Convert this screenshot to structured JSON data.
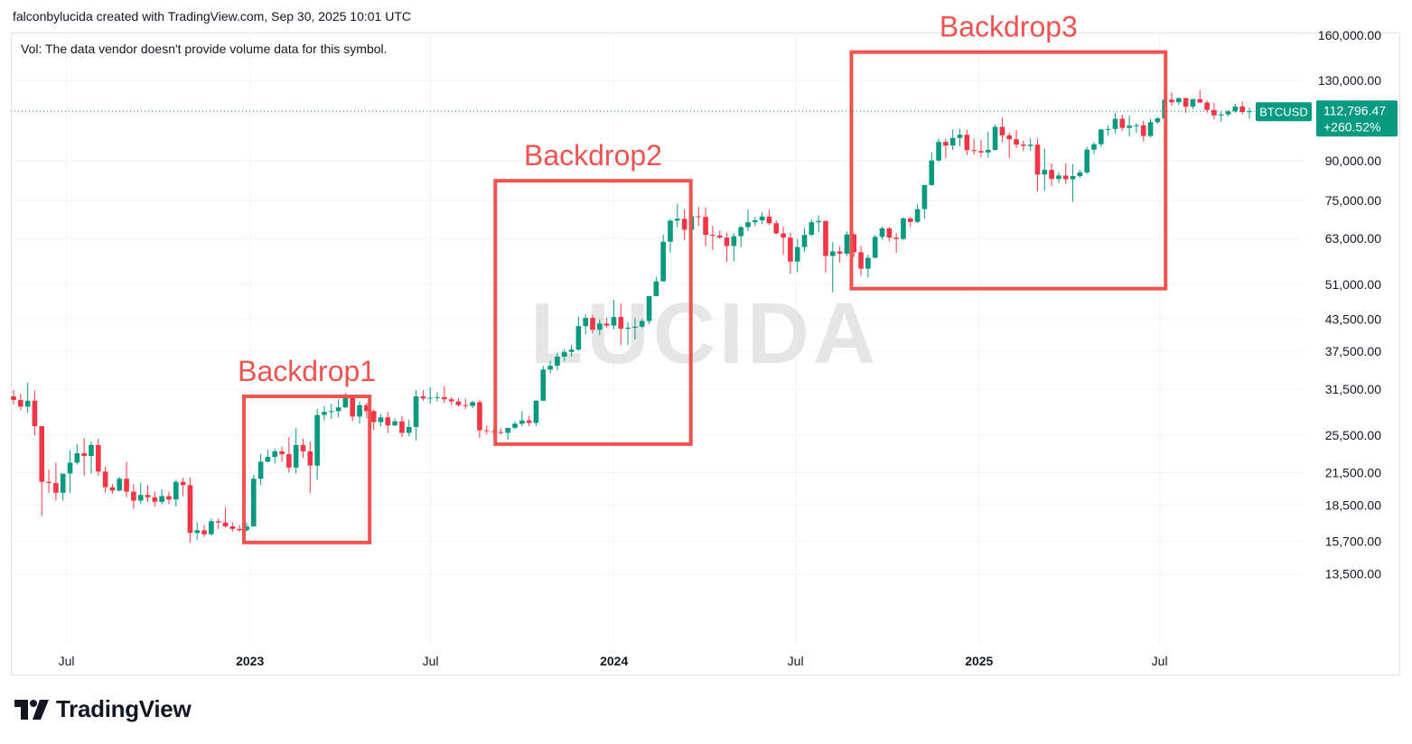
{
  "header": {
    "caption": "falconbylucida created with TradingView.com, Sep 30, 2025 10:01 UTC"
  },
  "chart": {
    "vol_note": "Vol: The data vendor doesn't provide volume data for this symbol.",
    "watermark": "LUCIDA",
    "symbol": "BTCUSD",
    "last_price": "112,796.47",
    "last_change": "+260.52%",
    "colors": {
      "up": "#089981",
      "down": "#f23645",
      "box": "#ef5350",
      "grid": "#f0f3fa"
    }
  },
  "brand": {
    "name": "TradingView"
  },
  "chart_data": {
    "type": "candlestick",
    "title": "",
    "scale": "log",
    "grid": true,
    "price_axis": {
      "ticks": [
        "13,500.00",
        "15,700.00",
        "18,500.00",
        "21,500.00",
        "25,500.00",
        "31,500.00",
        "37,500.00",
        "43,500.00",
        "51,000.00",
        "63,000.00",
        "75,000.00",
        "90,000.00",
        "130,000.00",
        "160,000.00"
      ],
      "tick_values": [
        13500,
        15700,
        18500,
        21500,
        25500,
        31500,
        37500,
        43500,
        51000,
        63000,
        75000,
        90000,
        130000,
        160000
      ]
    },
    "time_axis": {
      "ticks": [
        "Jul",
        "2023",
        "Jul",
        "2024",
        "Jul",
        "2025",
        "Jul"
      ],
      "tick_dates": [
        "2022-07-01",
        "2023-01-01",
        "2023-07-01",
        "2024-01-01",
        "2024-07-01",
        "2025-01-01",
        "2025-07-01"
      ],
      "bold": [
        false,
        true,
        false,
        true,
        false,
        true,
        false
      ],
      "range": [
        "2022-05-09",
        "2025-09-29"
      ]
    },
    "candle_interval": "1 week",
    "candles": [
      [
        30500,
        31400,
        29400,
        30000
      ],
      [
        30000,
        30900,
        28600,
        29100
      ],
      [
        29100,
        32500,
        28300,
        29900
      ],
      [
        29900,
        31300,
        25500,
        26600
      ],
      [
        26600,
        26600,
        17600,
        20600
      ],
      [
        20600,
        21800,
        19600,
        20500
      ],
      [
        20500,
        22500,
        18900,
        19600
      ],
      [
        19600,
        21000,
        18900,
        21400
      ],
      [
        21400,
        23800,
        19600,
        22500
      ],
      [
        22500,
        24500,
        22300,
        23500
      ],
      [
        23500,
        25200,
        21200,
        23200
      ],
      [
        23200,
        24800,
        21400,
        24400
      ],
      [
        24400,
        25100,
        21200,
        21600
      ],
      [
        21600,
        22100,
        19600,
        20100
      ],
      [
        20100,
        20400,
        19500,
        19800
      ],
      [
        19800,
        21100,
        19700,
        20900
      ],
      [
        20900,
        22600,
        19200,
        19700
      ],
      [
        19700,
        20400,
        18200,
        18900
      ],
      [
        18900,
        20500,
        18600,
        19400
      ],
      [
        19400,
        20300,
        18800,
        19200
      ],
      [
        19200,
        19700,
        18400,
        18800
      ],
      [
        18800,
        19900,
        18600,
        19300
      ],
      [
        19300,
        19700,
        18600,
        19000
      ],
      [
        19000,
        20800,
        18400,
        20600
      ],
      [
        20600,
        21000,
        19300,
        20300
      ],
      [
        20300,
        21000,
        15600,
        16300
      ],
      [
        16300,
        17100,
        15800,
        16500
      ],
      [
        16500,
        16900,
        16000,
        16200
      ],
      [
        16200,
        17400,
        16100,
        17200
      ],
      [
        17200,
        17400,
        16600,
        17100
      ],
      [
        17100,
        18300,
        16700,
        16800
      ],
      [
        16800,
        17100,
        16400,
        16600
      ],
      [
        16600,
        16900,
        16400,
        16500
      ],
      [
        16500,
        17100,
        16400,
        16800
      ],
      [
        16800,
        21300,
        16800,
        20900
      ],
      [
        20900,
        23400,
        20300,
        22600
      ],
      [
        22600,
        23900,
        22500,
        23100
      ],
      [
        23100,
        24000,
        22400,
        23700
      ],
      [
        23700,
        24200,
        22600,
        23400
      ],
      [
        23400,
        25300,
        21500,
        22000
      ],
      [
        22000,
        26400,
        21400,
        24400
      ],
      [
        24400,
        25100,
        23000,
        23700
      ],
      [
        23700,
        24800,
        19600,
        22200
      ],
      [
        22200,
        28800,
        20800,
        28000
      ],
      [
        28000,
        29200,
        27300,
        28400
      ],
      [
        28400,
        29500,
        27500,
        28500
      ],
      [
        28500,
        30100,
        27700,
        29000
      ],
      [
        29000,
        31000,
        28900,
        30400
      ],
      [
        30400,
        30500,
        27200,
        27800
      ],
      [
        27800,
        29800,
        26900,
        29300
      ],
      [
        29300,
        29600,
        27600,
        28500
      ],
      [
        28500,
        28700,
        26100,
        27100
      ],
      [
        27100,
        28100,
        26600,
        27700
      ],
      [
        27700,
        28400,
        25800,
        26700
      ],
      [
        26700,
        27600,
        26600,
        27200
      ],
      [
        27200,
        27900,
        25300,
        25800
      ],
      [
        25800,
        27400,
        25400,
        26500
      ],
      [
        26500,
        31400,
        24900,
        30500
      ],
      [
        30500,
        31400,
        29900,
        30200
      ],
      [
        30200,
        31800,
        29500,
        30300
      ],
      [
        30300,
        31100,
        29800,
        30400
      ],
      [
        30400,
        32000,
        29600,
        30100
      ],
      [
        30100,
        30400,
        29300,
        29800
      ],
      [
        29800,
        30200,
        29100,
        29300
      ],
      [
        29300,
        30200,
        28800,
        29200
      ],
      [
        29200,
        29900,
        28900,
        29700
      ],
      [
        29700,
        30000,
        25200,
        26100
      ],
      [
        26100,
        26700,
        25600,
        26000
      ],
      [
        26000,
        26400,
        25300,
        25900
      ],
      [
        25900,
        26300,
        25600,
        25800
      ],
      [
        25800,
        26200,
        25000,
        26400
      ],
      [
        26400,
        27200,
        26200,
        26900
      ],
      [
        26900,
        28500,
        26600,
        27300
      ],
      [
        27300,
        27900,
        26600,
        27000
      ],
      [
        27000,
        30000,
        26600,
        29900
      ],
      [
        29900,
        35100,
        29800,
        34500
      ],
      [
        34500,
        35900,
        33900,
        35100
      ],
      [
        35100,
        37300,
        34400,
        36600
      ],
      [
        36600,
        37900,
        35800,
        37400
      ],
      [
        37400,
        38600,
        36600,
        37800
      ],
      [
        37800,
        44000,
        37600,
        42100
      ],
      [
        42100,
        44500,
        40600,
        43700
      ],
      [
        43700,
        44300,
        40800,
        41400
      ],
      [
        41400,
        43400,
        40400,
        42600
      ],
      [
        42600,
        43800,
        41800,
        42200
      ],
      [
        42200,
        47500,
        41500,
        43900
      ],
      [
        43900,
        46700,
        38600,
        41600
      ],
      [
        41600,
        42900,
        38600,
        41800
      ],
      [
        41800,
        43700,
        39600,
        42000
      ],
      [
        42000,
        43500,
        41700,
        43100
      ],
      [
        43100,
        48300,
        42500,
        48300
      ],
      [
        48300,
        52800,
        48200,
        51700
      ],
      [
        51700,
        64000,
        51600,
        62000
      ],
      [
        62000,
        68900,
        59000,
        68300
      ],
      [
        68300,
        73800,
        66200,
        68900
      ],
      [
        68900,
        72000,
        62500,
        65500
      ],
      [
        65500,
        71000,
        64300,
        69700
      ],
      [
        69700,
        72800,
        66700,
        69500
      ],
      [
        69500,
        72600,
        60700,
        64000
      ],
      [
        64000,
        66700,
        59700,
        63800
      ],
      [
        63800,
        65300,
        62800,
        63200
      ],
      [
        63200,
        64700,
        56500,
        60800
      ],
      [
        60800,
        64500,
        56700,
        63600
      ],
      [
        63600,
        66600,
        60500,
        66300
      ],
      [
        66300,
        71900,
        65100,
        67800
      ],
      [
        67800,
        69400,
        66600,
        68400
      ],
      [
        68400,
        70900,
        67200,
        69600
      ],
      [
        69600,
        71800,
        67000,
        67500
      ],
      [
        67500,
        68400,
        64100,
        64400
      ],
      [
        64400,
        66500,
        58400,
        63200
      ],
      [
        63200,
        64600,
        53500,
        56600
      ],
      [
        56600,
        62800,
        53900,
        60500
      ],
      [
        60500,
        66000,
        59200,
        64000
      ],
      [
        64000,
        68700,
        63600,
        67800
      ],
      [
        67800,
        70000,
        64700,
        68200
      ],
      [
        68200,
        68300,
        53800,
        58100
      ],
      [
        58100,
        61900,
        49100,
        59300
      ],
      [
        59300,
        60700,
        56300,
        58700
      ],
      [
        58700,
        65000,
        58100,
        64100
      ],
      [
        64100,
        64500,
        57800,
        59100
      ],
      [
        59100,
        60800,
        53000,
        54800
      ],
      [
        54800,
        58400,
        52600,
        57600
      ],
      [
        57600,
        64000,
        57500,
        63400
      ],
      [
        63400,
        66500,
        62600,
        65900
      ],
      [
        65900,
        66400,
        62100,
        63200
      ],
      [
        63200,
        64500,
        58900,
        62800
      ],
      [
        62800,
        69400,
        62400,
        69000
      ],
      [
        69000,
        69500,
        66300,
        67900
      ],
      [
        67900,
        73600,
        67600,
        72000
      ],
      [
        72000,
        80000,
        68800,
        80400
      ],
      [
        80400,
        93500,
        80200,
        90000
      ],
      [
        90000,
        99500,
        89400,
        98000
      ],
      [
        98000,
        99500,
        91000,
        96400
      ],
      [
        96400,
        103900,
        94400,
        99800
      ],
      [
        99800,
        104000,
        96000,
        101300
      ],
      [
        101300,
        103700,
        92200,
        94400
      ],
      [
        94400,
        99500,
        92500,
        94000
      ],
      [
        94000,
        98900,
        91300,
        93400
      ],
      [
        93400,
        102700,
        91200,
        94500
      ],
      [
        94500,
        106000,
        94100,
        105000
      ],
      [
        105000,
        109500,
        98000,
        101000
      ],
      [
        101000,
        102400,
        91200,
        99200
      ],
      [
        99200,
        103600,
        95200,
        96800
      ],
      [
        96800,
        98700,
        94000,
        96200
      ],
      [
        96200,
        99500,
        94100,
        96800
      ],
      [
        96800,
        99400,
        78200,
        84400
      ],
      [
        84400,
        95000,
        78300,
        86200
      ],
      [
        86200,
        88800,
        80000,
        82700
      ],
      [
        82700,
        85300,
        81200,
        84000
      ],
      [
        84000,
        88800,
        80800,
        82600
      ],
      [
        82600,
        88500,
        74500,
        83800
      ],
      [
        83800,
        86200,
        83100,
        85200
      ],
      [
        85200,
        95800,
        84500,
        94600
      ],
      [
        94600,
        97900,
        92800,
        97000
      ],
      [
        97000,
        104100,
        95800,
        103800
      ],
      [
        103800,
        105800,
        100800,
        104000
      ],
      [
        104000,
        111900,
        102100,
        109000
      ],
      [
        109000,
        111000,
        103100,
        104500
      ],
      [
        104500,
        110500,
        100500,
        105600
      ],
      [
        105600,
        106800,
        102200,
        105800
      ],
      [
        105800,
        108000,
        98200,
        100700
      ],
      [
        100700,
        108900,
        100000,
        107300
      ],
      [
        107300,
        109800,
        106500,
        109200
      ],
      [
        109200,
        119000,
        108500,
        119000
      ],
      [
        119000,
        123200,
        115800,
        117600
      ],
      [
        117600,
        120300,
        116000,
        119800
      ],
      [
        119800,
        120200,
        112000,
        115200
      ],
      [
        115200,
        119300,
        114000,
        119300
      ],
      [
        119300,
        124400,
        117200,
        117400
      ],
      [
        117400,
        118600,
        112000,
        113500
      ],
      [
        113500,
        117200,
        108800,
        110700
      ],
      [
        110700,
        112600,
        107500,
        111200
      ],
      [
        111200,
        113300,
        110200,
        112800
      ],
      [
        112800,
        116700,
        112000,
        115300
      ],
      [
        115300,
        117900,
        111200,
        112400
      ],
      [
        112400,
        114500,
        109000,
        112796
      ]
    ],
    "annotations": [
      {
        "label": "Backdrop1",
        "from": "2022-12-26",
        "to": "2023-05-01",
        "price_high": 30500,
        "price_low": 15600
      },
      {
        "label": "Backdrop2",
        "from": "2023-09-04",
        "to": "2024-03-18",
        "price_high": 82000,
        "price_low": 24500
      },
      {
        "label": "Backdrop3",
        "from": "2024-08-26",
        "to": "2025-07-07",
        "price_high": 148000,
        "price_low": 50000
      }
    ],
    "last_price": 112796.47
  }
}
